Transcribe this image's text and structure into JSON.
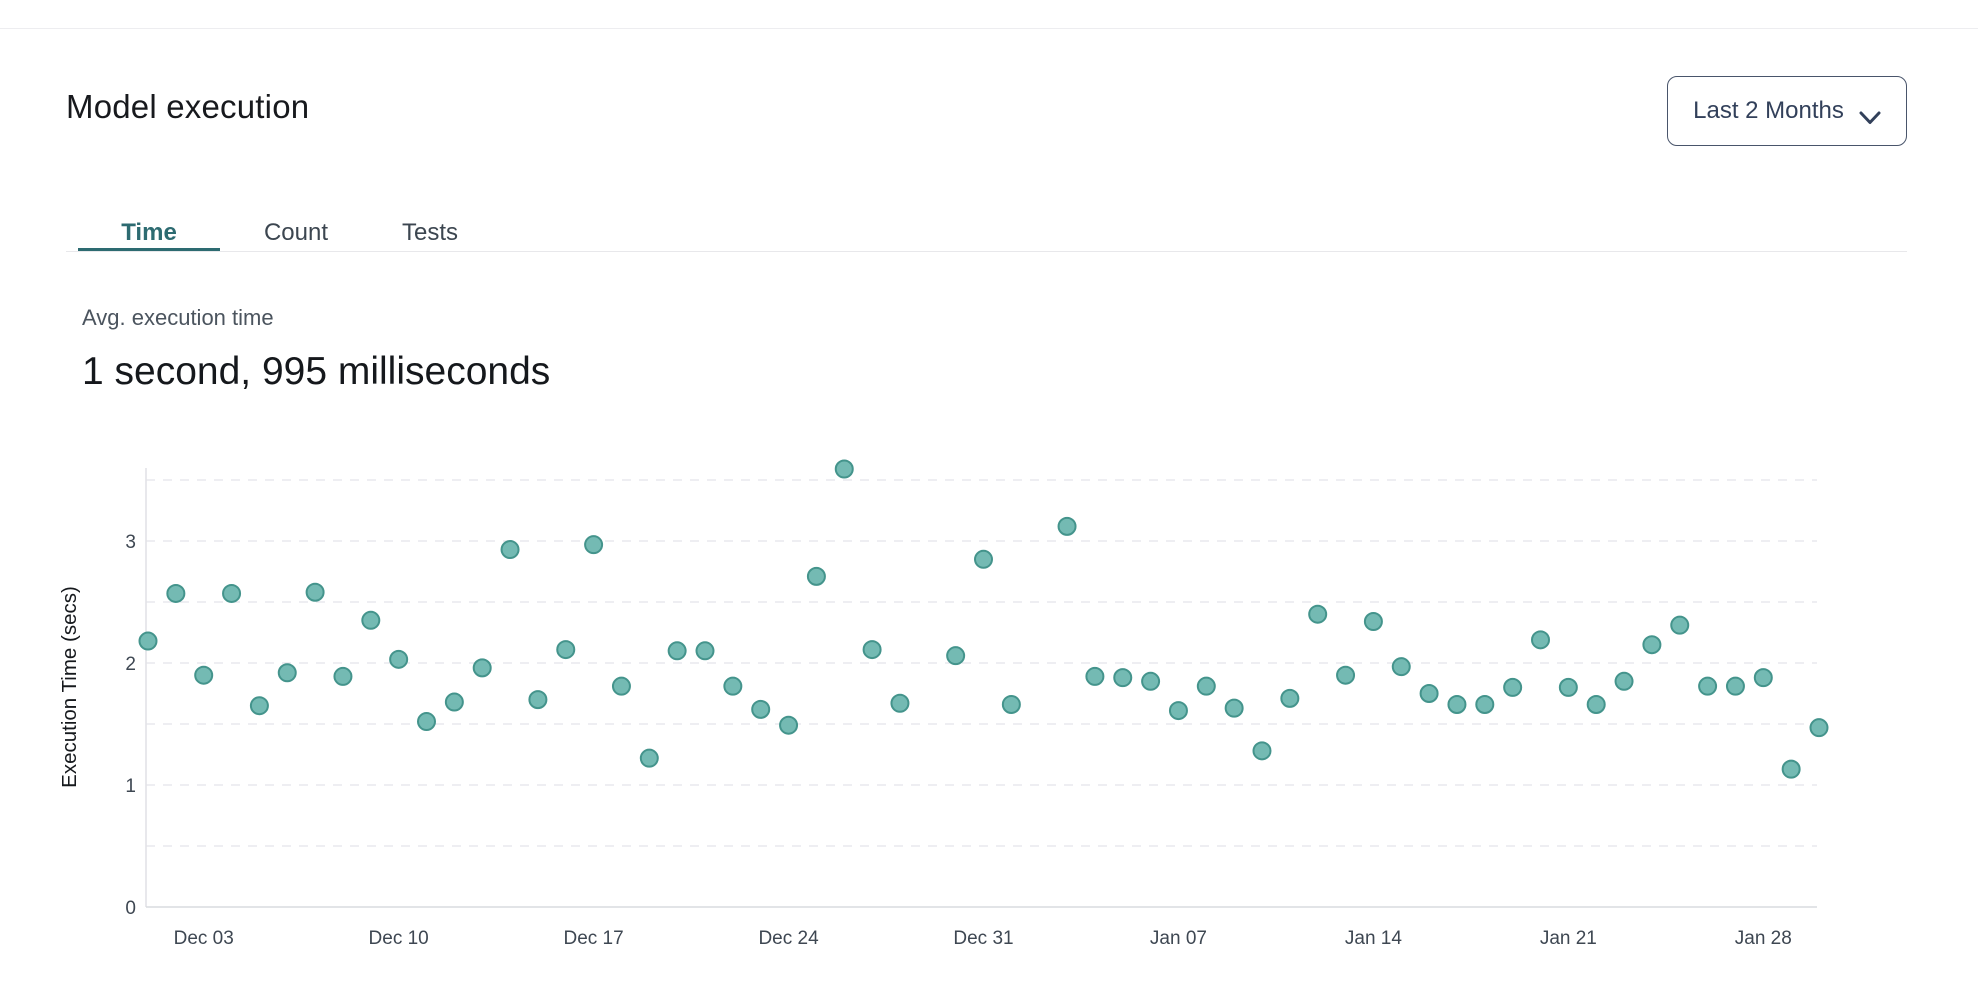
{
  "header": {
    "title": "Model execution",
    "range_selector": {
      "label": "Last 2 Months"
    }
  },
  "tabs": [
    {
      "label": "Time",
      "active": true
    },
    {
      "label": "Count",
      "active": false
    },
    {
      "label": "Tests",
      "active": false
    }
  ],
  "summary": {
    "label": "Avg. execution time",
    "value": "1 second, 995 milliseconds"
  },
  "colors": {
    "accent_teal": "#2d6b71",
    "point_fill": "#74bab3",
    "point_stroke": "#44948c",
    "grid_line": "#e9e9ee",
    "axis_line": "#d9dbdf",
    "tick_text": "#3e4752"
  },
  "chart_data": {
    "type": "scatter",
    "title": "",
    "xlabel": "",
    "ylabel": "Execution Time (secs)",
    "ylim": [
      0,
      3.67
    ],
    "yticks": [
      0,
      1,
      2,
      3
    ],
    "grid": "horizontal dashed every 0.5",
    "legend": "none",
    "x_tick_labels": [
      "Dec 03",
      "Dec 10",
      "Dec 17",
      "Dec 24",
      "Dec 31",
      "Jan 07",
      "Jan 14",
      "Jan 21",
      "Jan 28"
    ],
    "points": [
      {
        "date": "Dec 01",
        "secs": 2.18
      },
      {
        "date": "Dec 02",
        "secs": 2.57
      },
      {
        "date": "Dec 03",
        "secs": 1.9
      },
      {
        "date": "Dec 04",
        "secs": 2.57
      },
      {
        "date": "Dec 05",
        "secs": 1.65
      },
      {
        "date": "Dec 06",
        "secs": 1.92
      },
      {
        "date": "Dec 07",
        "secs": 2.58
      },
      {
        "date": "Dec 08",
        "secs": 1.89
      },
      {
        "date": "Dec 09",
        "secs": 2.35
      },
      {
        "date": "Dec 10",
        "secs": 2.03
      },
      {
        "date": "Dec 11",
        "secs": 1.52
      },
      {
        "date": "Dec 12",
        "secs": 1.68
      },
      {
        "date": "Dec 13",
        "secs": 1.96
      },
      {
        "date": "Dec 14",
        "secs": 2.93
      },
      {
        "date": "Dec 15",
        "secs": 1.7
      },
      {
        "date": "Dec 16",
        "secs": 2.11
      },
      {
        "date": "Dec 17",
        "secs": 2.97
      },
      {
        "date": "Dec 18",
        "secs": 1.81
      },
      {
        "date": "Dec 19",
        "secs": 1.22
      },
      {
        "date": "Dec 20",
        "secs": 2.1
      },
      {
        "date": "Dec 21",
        "secs": 2.1
      },
      {
        "date": "Dec 22",
        "secs": 1.81
      },
      {
        "date": "Dec 23",
        "secs": 1.62
      },
      {
        "date": "Dec 24",
        "secs": 1.49
      },
      {
        "date": "Dec 25",
        "secs": 2.71
      },
      {
        "date": "Dec 26",
        "secs": 3.59
      },
      {
        "date": "Dec 27",
        "secs": 2.11
      },
      {
        "date": "Dec 28",
        "secs": 1.67
      },
      {
        "date": "Dec 30",
        "secs": 2.06
      },
      {
        "date": "Dec 31",
        "secs": 2.85
      },
      {
        "date": "Jan 01",
        "secs": 1.66
      },
      {
        "date": "Jan 03",
        "secs": 3.12
      },
      {
        "date": "Jan 04",
        "secs": 1.89
      },
      {
        "date": "Jan 05",
        "secs": 1.88
      },
      {
        "date": "Jan 06",
        "secs": 1.85
      },
      {
        "date": "Jan 07",
        "secs": 1.61
      },
      {
        "date": "Jan 08",
        "secs": 1.81
      },
      {
        "date": "Jan 09",
        "secs": 1.63
      },
      {
        "date": "Jan 10",
        "secs": 1.28
      },
      {
        "date": "Jan 11",
        "secs": 1.71
      },
      {
        "date": "Jan 12",
        "secs": 2.4
      },
      {
        "date": "Jan 13",
        "secs": 1.9
      },
      {
        "date": "Jan 14",
        "secs": 2.34
      },
      {
        "date": "Jan 15",
        "secs": 1.97
      },
      {
        "date": "Jan 16",
        "secs": 1.75
      },
      {
        "date": "Jan 17",
        "secs": 1.66
      },
      {
        "date": "Jan 18",
        "secs": 1.66
      },
      {
        "date": "Jan 19",
        "secs": 1.8
      },
      {
        "date": "Jan 20",
        "secs": 2.19
      },
      {
        "date": "Jan 21",
        "secs": 1.8
      },
      {
        "date": "Jan 22",
        "secs": 1.66
      },
      {
        "date": "Jan 23",
        "secs": 1.85
      },
      {
        "date": "Jan 24",
        "secs": 2.15
      },
      {
        "date": "Jan 25",
        "secs": 2.31
      },
      {
        "date": "Jan 26",
        "secs": 1.81
      },
      {
        "date": "Jan 27",
        "secs": 1.81
      },
      {
        "date": "Jan 28",
        "secs": 1.88
      },
      {
        "date": "Jan 29",
        "secs": 1.13
      },
      {
        "date": "Jan 30",
        "secs": 1.47
      }
    ]
  }
}
